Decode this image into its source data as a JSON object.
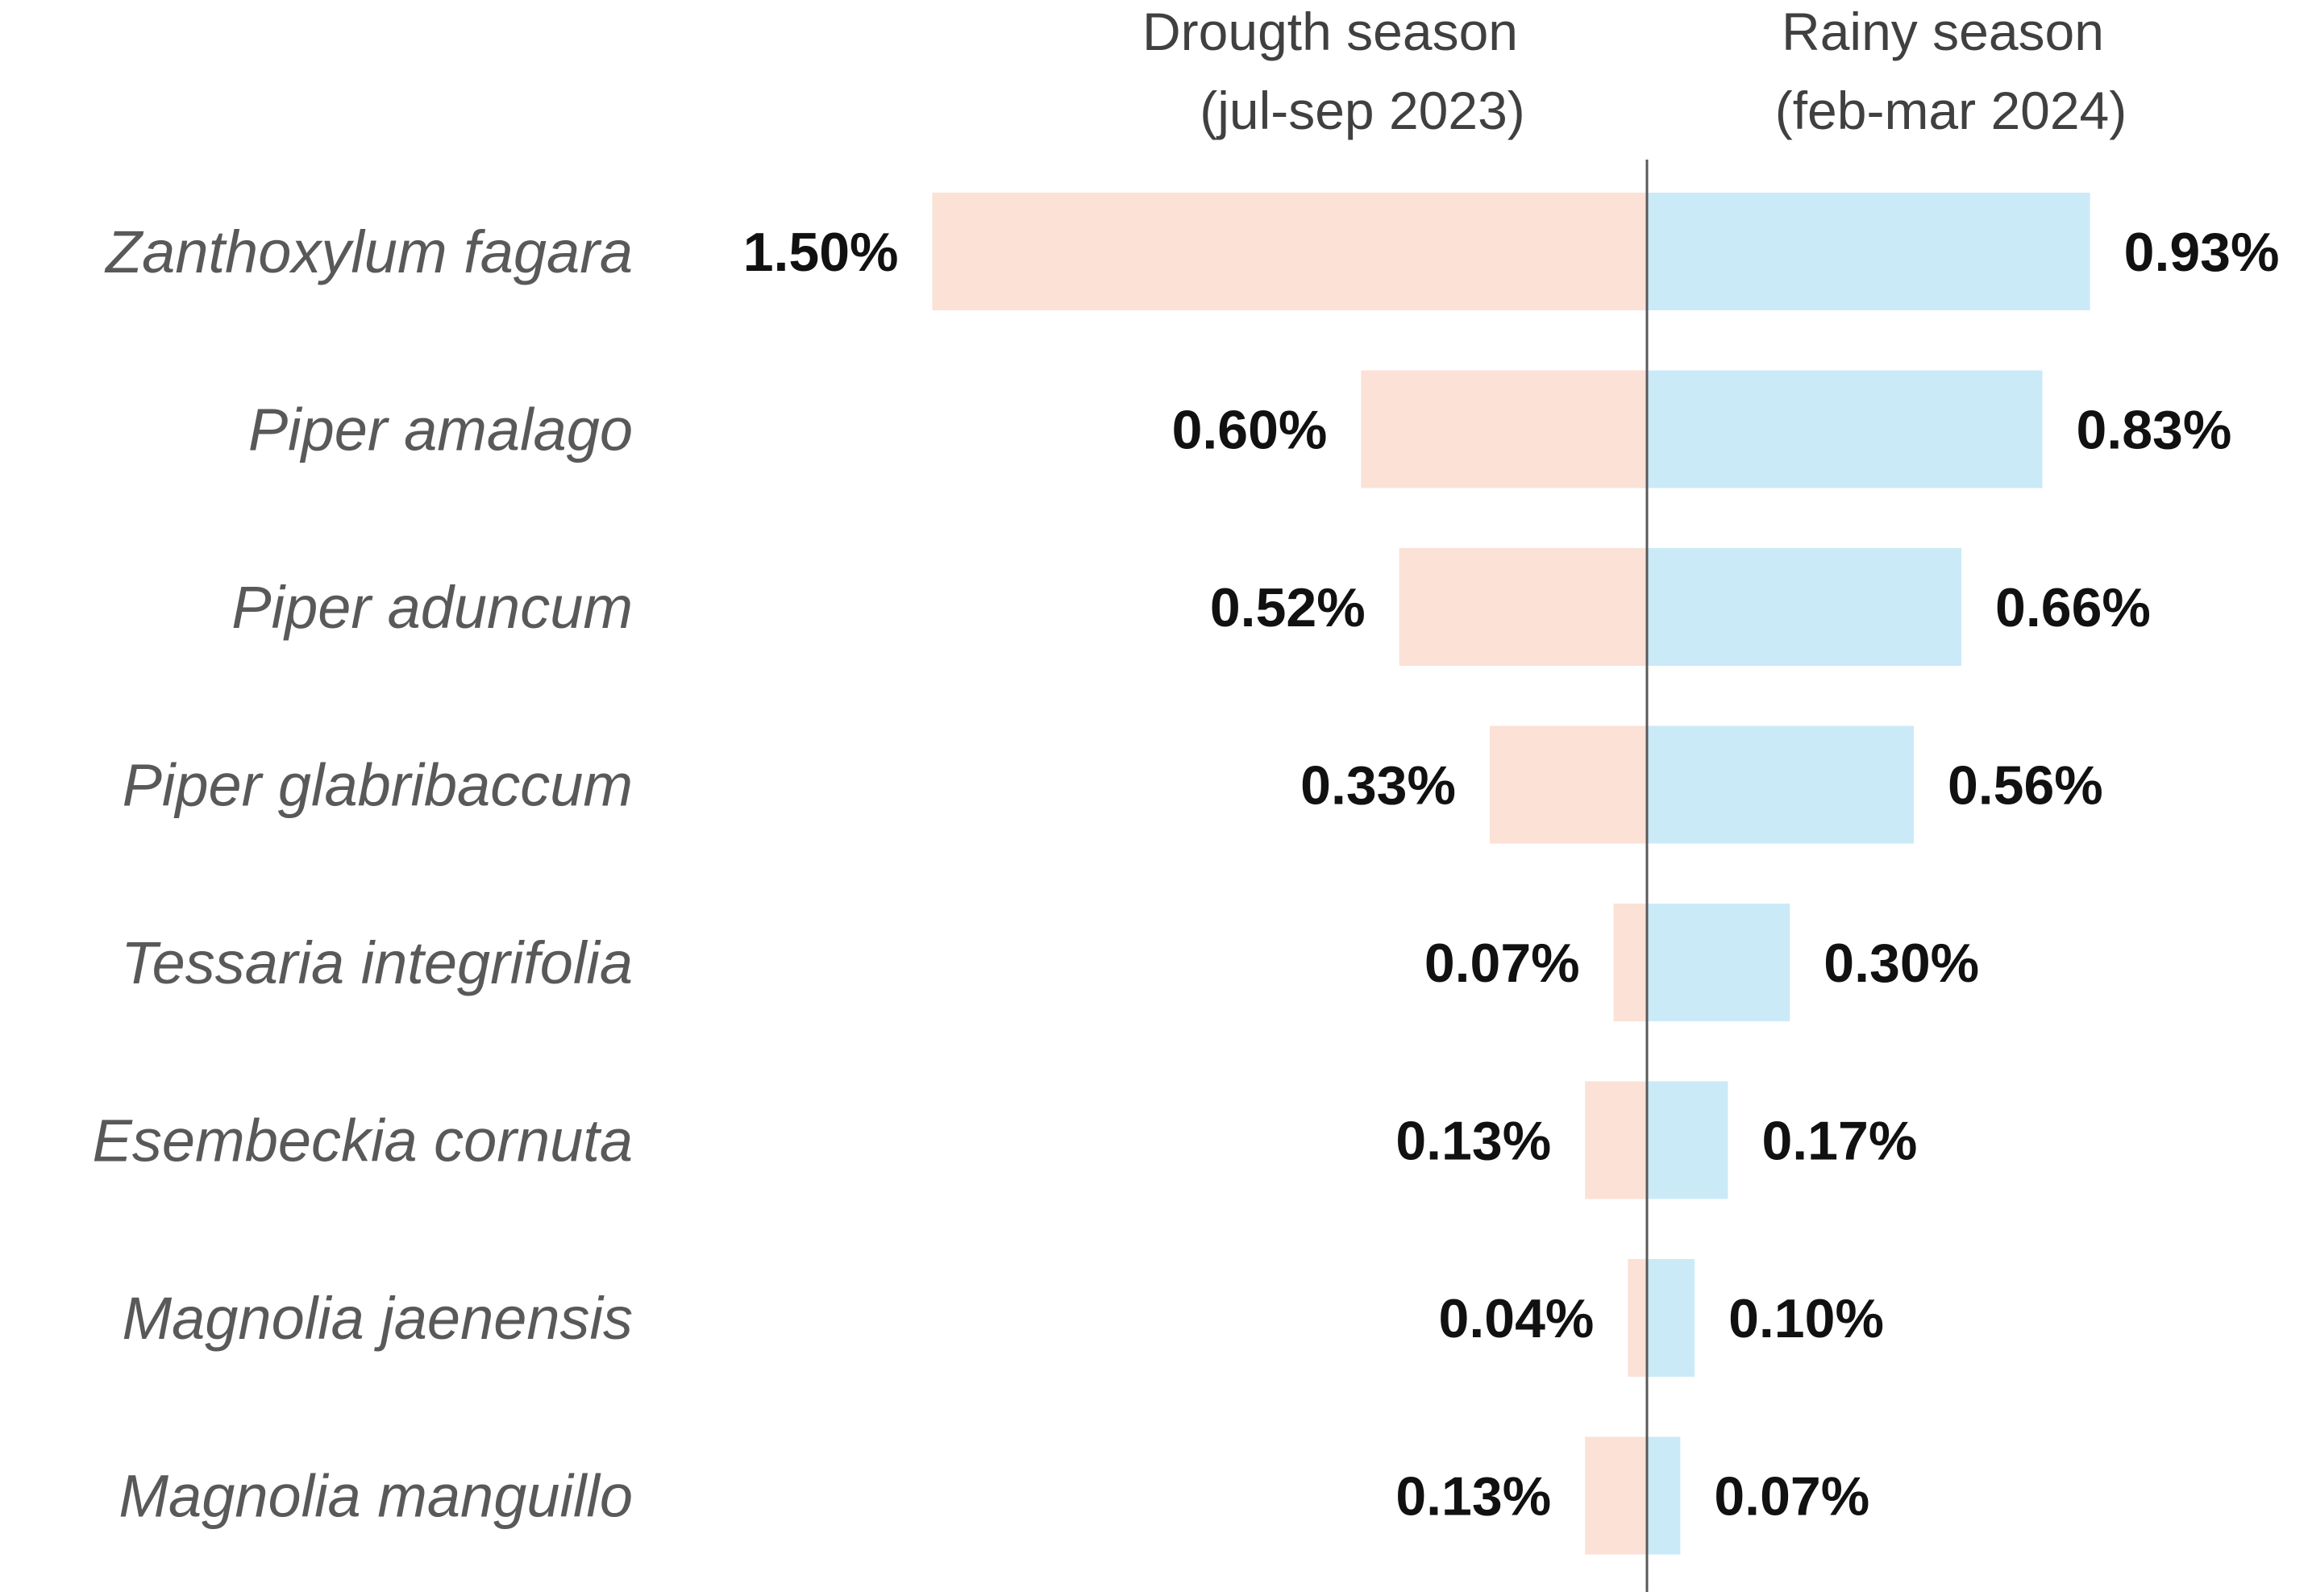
{
  "chart_data": {
    "type": "bar",
    "orientation": "horizontal-diverging",
    "value_unit": "%",
    "categories": [
      "Zanthoxylum fagara",
      "Piper amalago",
      "Piper aduncum",
      "Piper glabribaccum",
      "Tessaria integrifolia",
      "Esembeckia cornuta",
      "Magnolia jaenensis",
      "Magnolia manguillo"
    ],
    "series": [
      {
        "name": "Drougth season",
        "header_line1": "Drougth season",
        "header_line2": "(jul-sep 2023)",
        "side": "left",
        "color": "#FBE1D6",
        "values": [
          1.5,
          0.6,
          0.52,
          0.33,
          0.07,
          0.13,
          0.04,
          0.13
        ],
        "labels": [
          "1.50%",
          "0.60%",
          "0.52%",
          "0.33%",
          "0.07%",
          "0.13%",
          "0.04%",
          "0.13%"
        ]
      },
      {
        "name": "Rainy season",
        "header_line1": "Rainy season",
        "header_line2": "(feb-mar 2024)",
        "side": "right",
        "color": "#CBEAF8",
        "values": [
          0.93,
          0.83,
          0.66,
          0.56,
          0.3,
          0.17,
          0.1,
          0.07
        ],
        "labels": [
          "0.93%",
          "0.83%",
          "0.66%",
          "0.56%",
          "0.30%",
          "0.17%",
          "0.10%",
          "0.07%"
        ]
      }
    ],
    "title": "",
    "xlabel": "",
    "ylabel": "",
    "grid": false,
    "axis_color": "#595959"
  }
}
